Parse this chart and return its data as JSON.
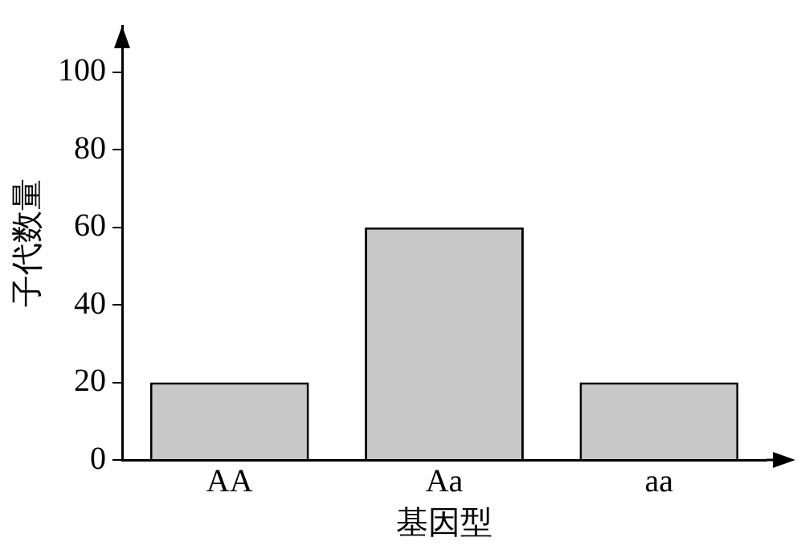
{
  "chart_data": {
    "type": "bar",
    "xlabel": "基因型",
    "ylabel": "子代数量",
    "categories": [
      "AA",
      "Aa",
      "aa"
    ],
    "values": [
      20,
      60,
      20
    ],
    "color": "#c8c8c8",
    "ylim": [
      0,
      112
    ],
    "yticks": [
      0,
      20,
      40,
      60,
      80,
      100
    ],
    "grid": false,
    "legend": false
  }
}
